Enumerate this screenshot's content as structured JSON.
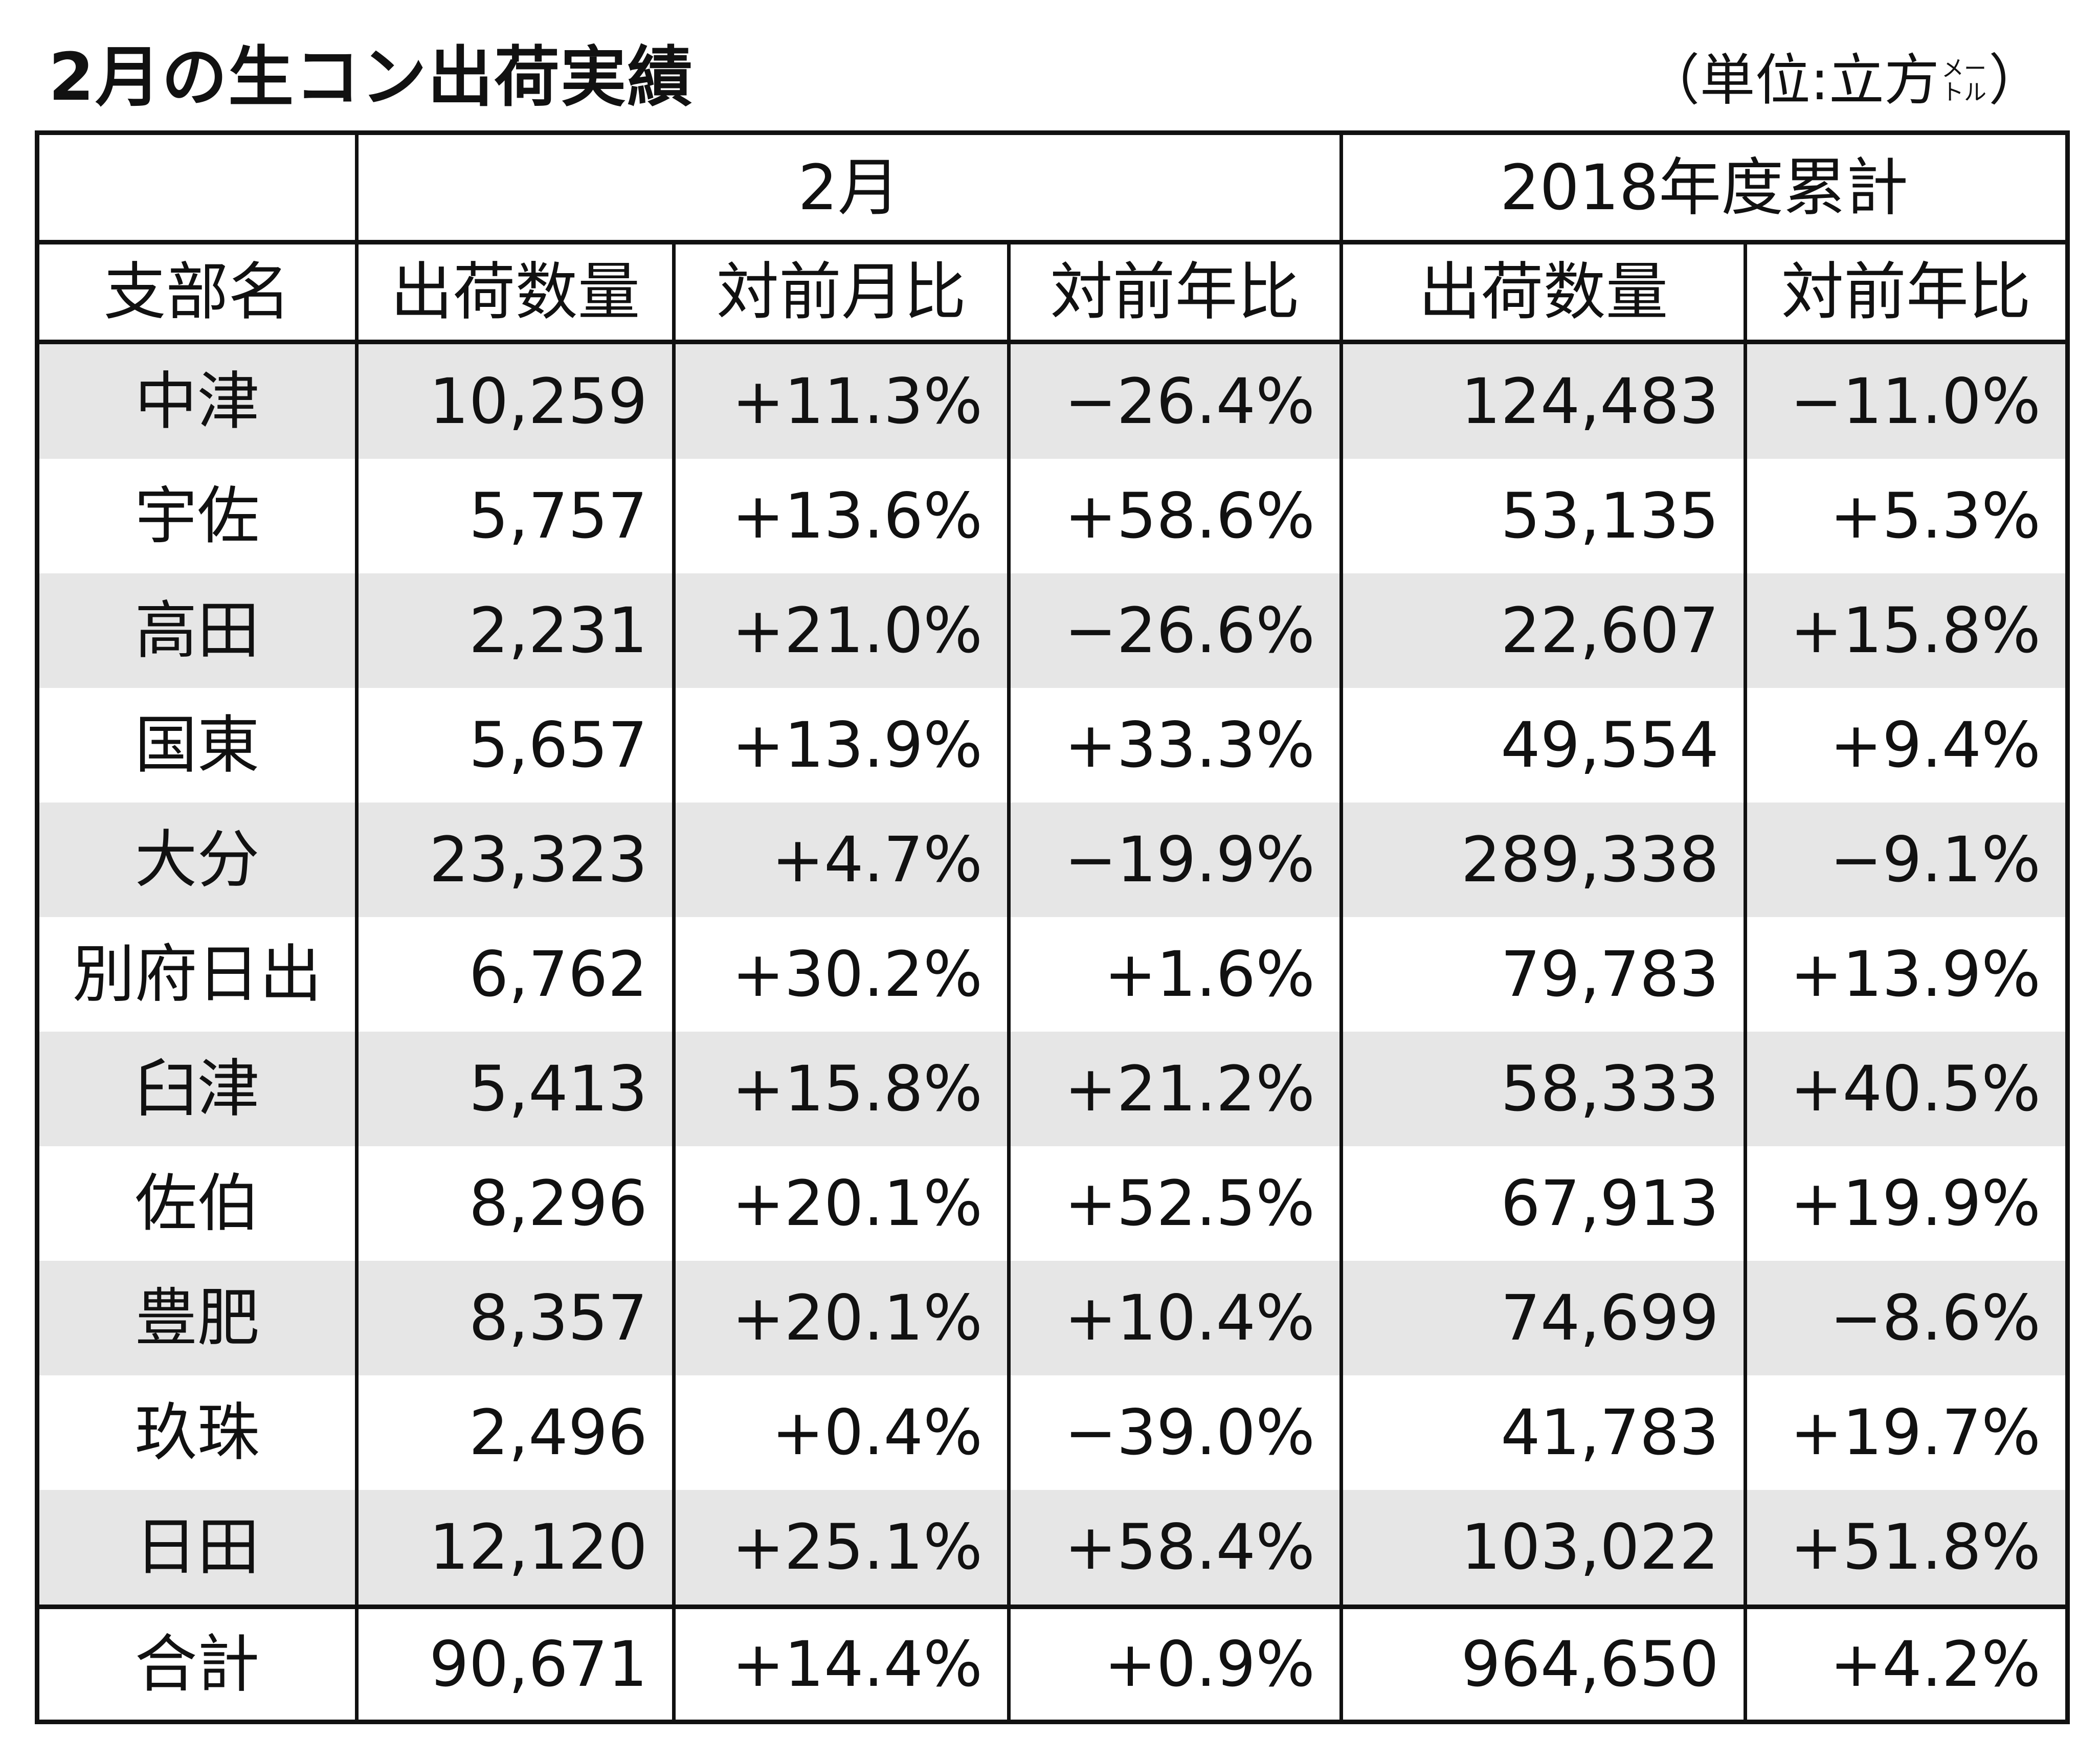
{
  "title": "2月の生コン出荷実績",
  "unit": {
    "open": "（単位:立方",
    "small_top": "メー",
    "small_bottom": "トル",
    "close": "）"
  },
  "header": {
    "group_month": "2月",
    "group_ytd": "2018年度累計",
    "col_branch": "支部名",
    "col_month_qty": "出荷数量",
    "col_month_mom": "対前月比",
    "col_month_yoy": "対前年比",
    "col_ytd_qty": "出荷数量",
    "col_ytd_yoy": "対前年比"
  },
  "rows": [
    {
      "branch": "中津",
      "qty": "10,259",
      "mom": "+11.3%",
      "yoy": "−26.4%",
      "ytd_qty": "124,483",
      "ytd_yoy": "−11.0%"
    },
    {
      "branch": "宇佐",
      "qty": "5,757",
      "mom": "+13.6%",
      "yoy": "+58.6%",
      "ytd_qty": "53,135",
      "ytd_yoy": "+5.3%"
    },
    {
      "branch": "高田",
      "qty": "2,231",
      "mom": "+21.0%",
      "yoy": "−26.6%",
      "ytd_qty": "22,607",
      "ytd_yoy": "+15.8%"
    },
    {
      "branch": "国東",
      "qty": "5,657",
      "mom": "+13.9%",
      "yoy": "+33.3%",
      "ytd_qty": "49,554",
      "ytd_yoy": "+9.4%"
    },
    {
      "branch": "大分",
      "qty": "23,323",
      "mom": "+4.7%",
      "yoy": "−19.9%",
      "ytd_qty": "289,338",
      "ytd_yoy": "−9.1%"
    },
    {
      "branch": "別府日出",
      "qty": "6,762",
      "mom": "+30.2%",
      "yoy": "+1.6%",
      "ytd_qty": "79,783",
      "ytd_yoy": "+13.9%"
    },
    {
      "branch": "臼津",
      "qty": "5,413",
      "mom": "+15.8%",
      "yoy": "+21.2%",
      "ytd_qty": "58,333",
      "ytd_yoy": "+40.5%"
    },
    {
      "branch": "佐伯",
      "qty": "8,296",
      "mom": "+20.1%",
      "yoy": "+52.5%",
      "ytd_qty": "67,913",
      "ytd_yoy": "+19.9%"
    },
    {
      "branch": "豊肥",
      "qty": "8,357",
      "mom": "+20.1%",
      "yoy": "+10.4%",
      "ytd_qty": "74,699",
      "ytd_yoy": "−8.6%"
    },
    {
      "branch": "玖珠",
      "qty": "2,496",
      "mom": "+0.4%",
      "yoy": "−39.0%",
      "ytd_qty": "41,783",
      "ytd_yoy": "+19.7%"
    },
    {
      "branch": "日田",
      "qty": "12,120",
      "mom": "+25.1%",
      "yoy": "+58.4%",
      "ytd_qty": "103,022",
      "ytd_yoy": "+51.8%"
    }
  ],
  "total": {
    "branch": "合計",
    "qty": "90,671",
    "mom": "+14.4%",
    "yoy": "+0.9%",
    "ytd_qty": "964,650",
    "ytd_yoy": "+4.2%"
  }
}
